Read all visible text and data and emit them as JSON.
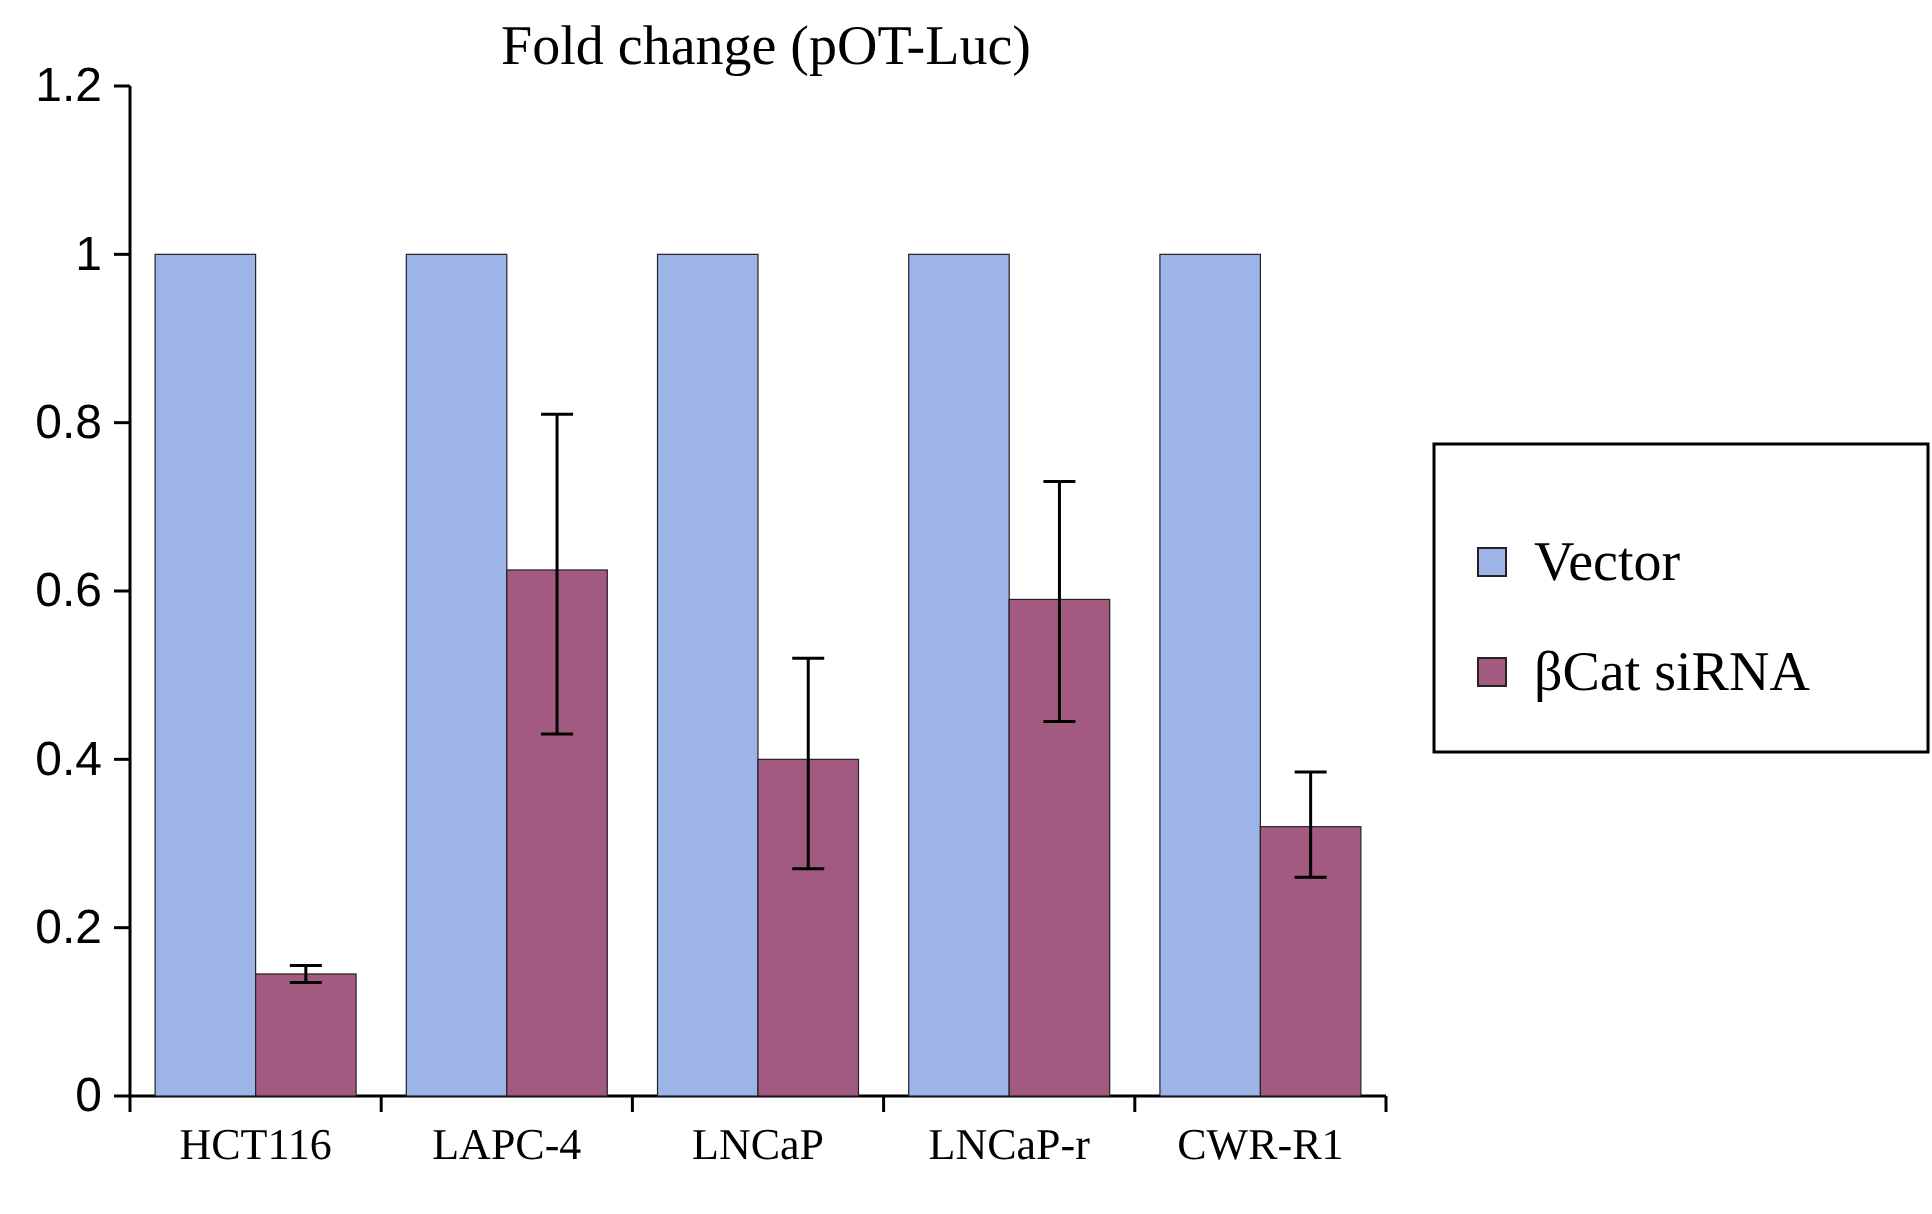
{
  "chart_data": {
    "type": "bar",
    "title": "Fold change (pOT-Luc)",
    "categories": [
      "HCT116",
      "LAPC-4",
      "LNCaP",
      "LNCaP-r",
      "CWR-R1"
    ],
    "series": [
      {
        "name": "Vector",
        "color": "#9db4e8",
        "values": [
          1,
          1,
          1,
          1,
          1
        ]
      },
      {
        "name": "βCat siRNA",
        "color": "#a35a80",
        "values": [
          0.145,
          0.625,
          0.4,
          0.59,
          0.32
        ],
        "errors": [
          [
            0.135,
            0.155
          ],
          [
            0.43,
            0.81
          ],
          [
            0.27,
            0.52
          ],
          [
            0.445,
            0.73
          ],
          [
            0.26,
            0.385
          ]
        ]
      }
    ],
    "ylim": [
      0,
      1.2
    ],
    "yticks": [
      0,
      {
        "value": 0.2,
        "label": "0.2"
      },
      {
        "value": 0.4,
        "label": "0.4"
      },
      {
        "value": 0.6,
        "label": "0.6"
      },
      {
        "value": 0.8,
        "label": "0.8"
      },
      1,
      {
        "value": 1.2,
        "label": "1.2"
      }
    ],
    "grid": false,
    "legend": "right"
  }
}
